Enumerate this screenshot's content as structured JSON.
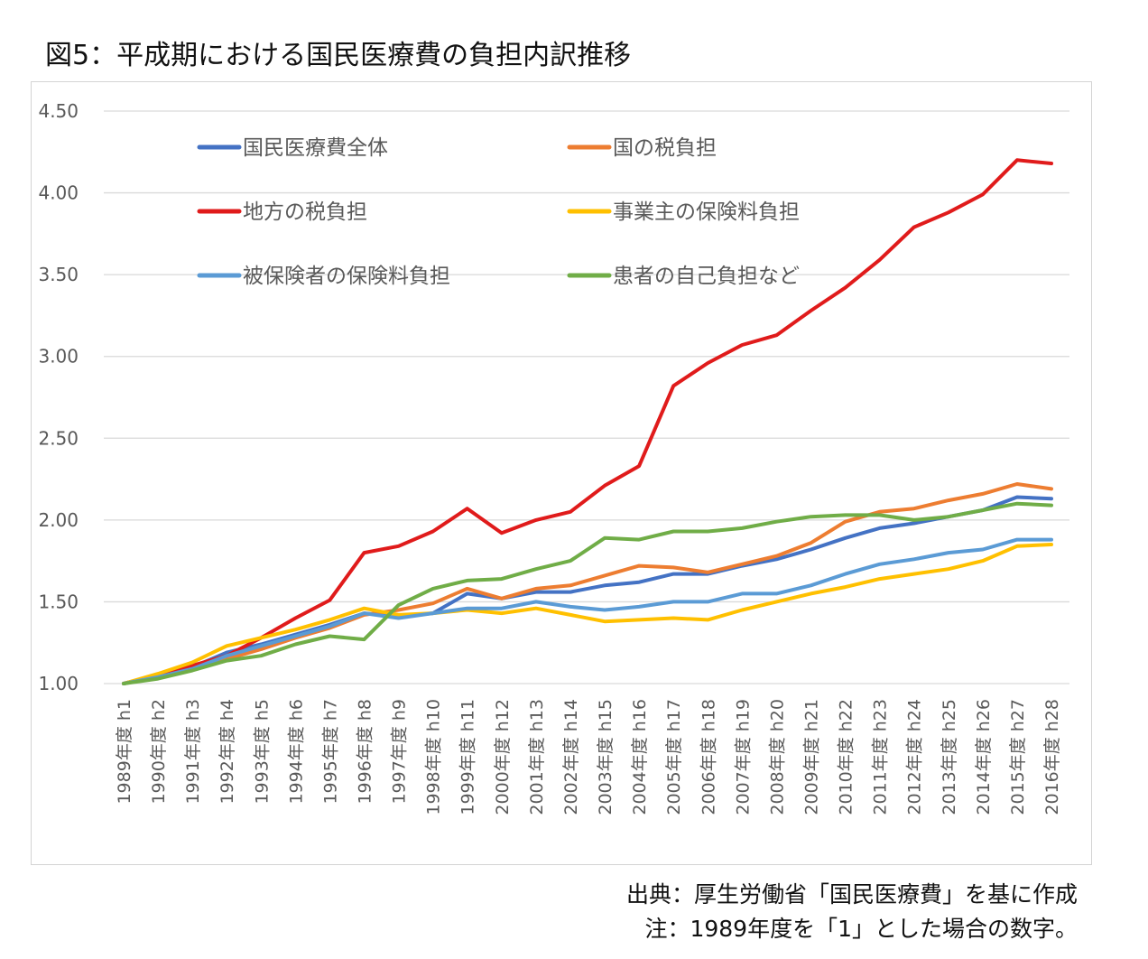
{
  "title": "図5：平成期における国民医療費の負担内訳推移",
  "notes": {
    "source": "出典：厚生労働省「国民医療費」を基に作成",
    "note": "注：1989年度を「1」とした場合の数字。"
  },
  "chart_data": {
    "type": "line",
    "title": "図5：平成期における国民医療費の負担内訳推移",
    "xlabel": "",
    "ylabel": "",
    "ylim": [
      1.0,
      4.5
    ],
    "yticks": [
      "1.00",
      "1.50",
      "2.00",
      "2.50",
      "3.00",
      "3.50",
      "4.00",
      "4.50"
    ],
    "grid": true,
    "legend_position": "top-left",
    "categories": [
      "1989年度 h1",
      "1990年度 h2",
      "1991年度 h3",
      "1992年度 h4",
      "1993年度 h5",
      "1994年度 h6",
      "1995年度 h7",
      "1996年度 h8",
      "1997年度 h9",
      "1998年度 h10",
      "1999年度 h11",
      "2000年度 h12",
      "2001年度 h13",
      "2002年度 h14",
      "2003年度 h15",
      "2004年度 h16",
      "2005年度 h17",
      "2006年度 h18",
      "2007年度 h19",
      "2008年度 h20",
      "2009年度 h21",
      "2010年度 h22",
      "2011年度 h23",
      "2012年度 h24",
      "2013年度 h25",
      "2014年度 h26",
      "2015年度 h27",
      "2016年度 h28"
    ],
    "series": [
      {
        "name": "国民医療費全体",
        "color": "#4472c4",
        "values": [
          1.0,
          1.05,
          1.1,
          1.19,
          1.24,
          1.3,
          1.36,
          1.43,
          1.41,
          1.43,
          1.55,
          1.52,
          1.56,
          1.56,
          1.6,
          1.62,
          1.67,
          1.67,
          1.72,
          1.76,
          1.82,
          1.89,
          1.95,
          1.98,
          2.02,
          2.06,
          2.14,
          2.13
        ]
      },
      {
        "name": "国の税負担",
        "color": "#ed7d31",
        "values": [
          1.0,
          1.05,
          1.1,
          1.15,
          1.21,
          1.28,
          1.34,
          1.42,
          1.45,
          1.49,
          1.58,
          1.52,
          1.58,
          1.6,
          1.66,
          1.72,
          1.71,
          1.68,
          1.73,
          1.78,
          1.86,
          1.99,
          2.05,
          2.07,
          2.12,
          2.16,
          2.22,
          2.19
        ]
      },
      {
        "name": "地方の税負担",
        "color": "#e01b1b",
        "values": [
          1.0,
          1.05,
          1.11,
          1.17,
          1.28,
          1.4,
          1.51,
          1.8,
          1.84,
          1.93,
          2.07,
          1.92,
          2.0,
          2.05,
          2.21,
          2.33,
          2.82,
          2.96,
          3.07,
          3.13,
          3.28,
          3.42,
          3.59,
          3.79,
          3.88,
          3.99,
          4.2,
          4.18
        ]
      },
      {
        "name": "事業主の保険料負担",
        "color": "#ffc000",
        "values": [
          1.0,
          1.06,
          1.13,
          1.23,
          1.28,
          1.33,
          1.39,
          1.46,
          1.42,
          1.43,
          1.45,
          1.43,
          1.46,
          1.42,
          1.38,
          1.39,
          1.4,
          1.39,
          1.45,
          1.5,
          1.55,
          1.59,
          1.64,
          1.67,
          1.7,
          1.75,
          1.84,
          1.85
        ]
      },
      {
        "name": "被保険者の保険料負担",
        "color": "#5b9bd5",
        "values": [
          1.0,
          1.04,
          1.09,
          1.17,
          1.23,
          1.29,
          1.35,
          1.43,
          1.4,
          1.43,
          1.46,
          1.46,
          1.5,
          1.47,
          1.45,
          1.47,
          1.5,
          1.5,
          1.55,
          1.55,
          1.6,
          1.67,
          1.73,
          1.76,
          1.8,
          1.82,
          1.88,
          1.88
        ]
      },
      {
        "name": "患者の自己負担など",
        "color": "#70ad47",
        "values": [
          1.0,
          1.03,
          1.08,
          1.14,
          1.17,
          1.24,
          1.29,
          1.27,
          1.48,
          1.58,
          1.63,
          1.64,
          1.7,
          1.75,
          1.89,
          1.88,
          1.93,
          1.93,
          1.95,
          1.99,
          2.02,
          2.03,
          2.03,
          2.0,
          2.02,
          2.06,
          2.1,
          2.09
        ]
      }
    ]
  }
}
